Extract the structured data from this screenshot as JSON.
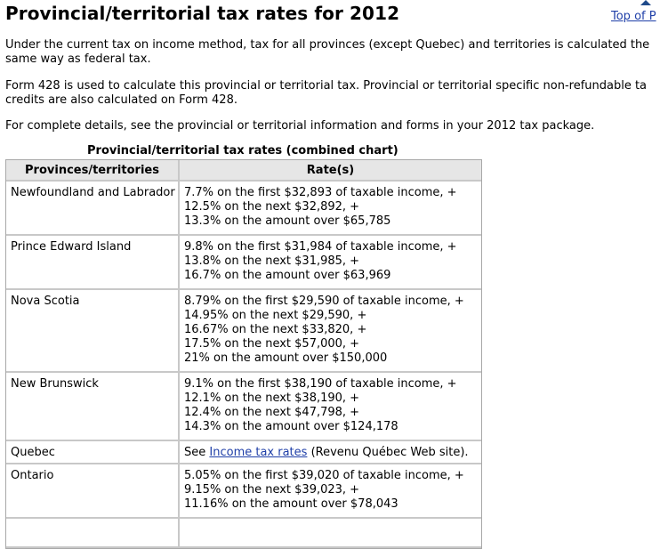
{
  "header": {
    "title": "Provincial/territorial tax rates for 2012",
    "top_link_label": "Top of P"
  },
  "intro": {
    "para1": "Under the current tax on income method, tax for all provinces (except Quebec) and territories is calculated the\nsame way as federal tax.",
    "para2": "Form 428 is used to calculate this provincial or territorial tax. Provincial or territorial specific non-refundable ta\ncredits are also calculated on Form 428.",
    "para3": "For complete details, see the provincial or territorial information and forms in your 2012 tax package."
  },
  "table": {
    "caption": "Provincial/territorial tax rates (combined chart)",
    "headers": [
      "Provinces/territories",
      "Rate(s)"
    ],
    "rows": [
      {
        "province": "Newfoundland and Labrador",
        "rates": "7.7% on the first $32,893 of taxable income, +\n12.5% on the next $32,892, +\n13.3% on the amount over $65,785"
      },
      {
        "province": "Prince Edward Island",
        "rates": "9.8% on the first $31,984 of taxable income, +\n13.8% on the next $31,985, +\n16.7% on the amount over $63,969"
      },
      {
        "province": "Nova Scotia",
        "rates": "8.79% on the first $29,590 of taxable income, +\n14.95% on the next $29,590, +\n16.67% on the next $33,820, +\n17.5% on the next $57,000, +\n21% on the amount over $150,000"
      },
      {
        "province": "New Brunswick",
        "rates": "9.1% on the first $38,190 of taxable income, +\n12.1% on the next $38,190, +\n12.4% on the next $47,798, +\n14.3% on the amount over $124,178"
      },
      {
        "province": "Quebec",
        "rates_prefix": "See ",
        "link_text": "Income tax rates",
        "rates_suffix": " (Revenu Québec Web site)."
      },
      {
        "province": "Ontario",
        "rates": "5.05% on the first $39,020 of taxable income, +\n9.15% on the next $39,023, +\n11.16% on the amount over $78,043"
      }
    ]
  }
}
